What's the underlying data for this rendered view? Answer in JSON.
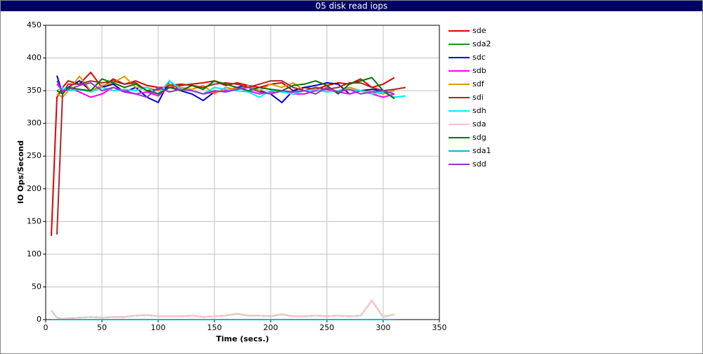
{
  "chart_data": {
    "type": "line",
    "title": "05 disk read iops",
    "xlabel": "Time (secs.)",
    "ylabel": "IO Ops/Second",
    "x": [
      5,
      10,
      15,
      20,
      30,
      40,
      50,
      60,
      70,
      80,
      90,
      100,
      110,
      120,
      130,
      140,
      150,
      160,
      170,
      180,
      190,
      200,
      210,
      220,
      230,
      240,
      250,
      260,
      270,
      280,
      290,
      300,
      310,
      320
    ],
    "xlim": [
      0,
      350
    ],
    "xticks": [
      0,
      50,
      100,
      150,
      200,
      250,
      300,
      350
    ],
    "ylim": [
      0,
      450
    ],
    "yticks": [
      0,
      50,
      100,
      150,
      200,
      250,
      300,
      350,
      400,
      450
    ],
    "grid": true,
    "legend": "right",
    "series": [
      {
        "name": "sde",
        "color": "#dd0000",
        "values": [
          128,
          340,
          355,
          365,
          360,
          378,
          355,
          368,
          360,
          365,
          358,
          355,
          355,
          358,
          360,
          362,
          365,
          358,
          362,
          358,
          355,
          360,
          362,
          350,
          355,
          352,
          358,
          362,
          360,
          368,
          355,
          360,
          370,
          null
        ]
      },
      {
        "name": "sda2",
        "color": "#119911",
        "values": [
          14,
          3,
          1,
          2,
          3,
          4,
          3,
          4,
          4,
          6,
          7,
          5,
          5,
          5,
          6,
          4,
          5,
          6,
          9,
          6,
          6,
          5,
          8,
          5,
          5,
          6,
          5,
          6,
          5,
          6,
          29,
          4,
          8,
          null
        ]
      },
      {
        "name": "sdc",
        "color": "#0000cc",
        "values": [
          null,
          373,
          345,
          355,
          365,
          350,
          355,
          360,
          348,
          355,
          340,
          332,
          365,
          350,
          345,
          335,
          348,
          350,
          355,
          358,
          350,
          345,
          332,
          350,
          355,
          358,
          362,
          360,
          345,
          350,
          352,
          350,
          338,
          null
        ]
      },
      {
        "name": "sdb",
        "color": "#ff00ff",
        "values": [
          null,
          360,
          350,
          355,
          348,
          340,
          345,
          355,
          350,
          345,
          348,
          342,
          355,
          352,
          350,
          345,
          348,
          350,
          355,
          350,
          345,
          348,
          350,
          345,
          345,
          350,
          352,
          348,
          345,
          350,
          345,
          340,
          345,
          null
        ]
      },
      {
        "name": "sdf",
        "color": "#e69500",
        "values": [
          null,
          345,
          340,
          350,
          372,
          350,
          358,
          362,
          372,
          355,
          355,
          350,
          360,
          355,
          352,
          358,
          345,
          355,
          352,
          358,
          350,
          360,
          355,
          362,
          350,
          352,
          348,
          350,
          355,
          350,
          348,
          345,
          350,
          null
        ]
      },
      {
        "name": "sdi",
        "color": "#a52a2a",
        "values": [
          null,
          130,
          345,
          360,
          360,
          365,
          362,
          365,
          360,
          362,
          350,
          352,
          358,
          360,
          358,
          355,
          360,
          362,
          360,
          355,
          360,
          365,
          365,
          355,
          350,
          355,
          352,
          355,
          362,
          362,
          355,
          350,
          352,
          355
        ]
      },
      {
        "name": "sdh",
        "color": "#00eeee",
        "values": [
          null,
          350,
          355,
          350,
          352,
          348,
          355,
          350,
          352,
          350,
          355,
          345,
          365,
          352,
          350,
          345,
          355,
          352,
          350,
          348,
          340,
          350,
          348,
          345,
          350,
          352,
          348,
          350,
          352,
          350,
          345,
          348,
          340,
          342
        ]
      },
      {
        "name": "sda",
        "color": "#ffc0cb",
        "values": [
          14,
          3,
          1,
          2,
          3,
          4,
          3,
          4,
          4,
          6,
          7,
          5,
          5,
          5,
          6,
          4,
          5,
          6,
          9,
          6,
          6,
          5,
          8,
          5,
          5,
          6,
          5,
          6,
          5,
          6,
          29,
          4,
          8,
          null
        ]
      },
      {
        "name": "sdg",
        "color": "#007700",
        "values": [
          null,
          350,
          345,
          355,
          352,
          350,
          368,
          362,
          355,
          360,
          350,
          345,
          355,
          350,
          358,
          352,
          365,
          360,
          355,
          350,
          355,
          352,
          350,
          358,
          360,
          365,
          358,
          345,
          360,
          365,
          370,
          350,
          338,
          null
        ]
      },
      {
        "name": "sda1",
        "color": "#00bbcc",
        "values": [
          0,
          0,
          0,
          0,
          0,
          0,
          0,
          0,
          0,
          0,
          0,
          0,
          0,
          0,
          0,
          0,
          0,
          0,
          0,
          0,
          0,
          0,
          0,
          0,
          0,
          0,
          0,
          0,
          0,
          0,
          0,
          0,
          0,
          null
        ]
      },
      {
        "name": "sdd",
        "color": "#9933cc",
        "values": [
          null,
          365,
          348,
          352,
          358,
          362,
          350,
          355,
          348,
          345,
          340,
          355,
          348,
          352,
          350,
          345,
          350,
          348,
          352,
          355,
          348,
          345,
          350,
          348,
          350,
          345,
          355,
          348,
          352,
          345,
          348,
          350,
          345,
          null
        ]
      }
    ]
  }
}
